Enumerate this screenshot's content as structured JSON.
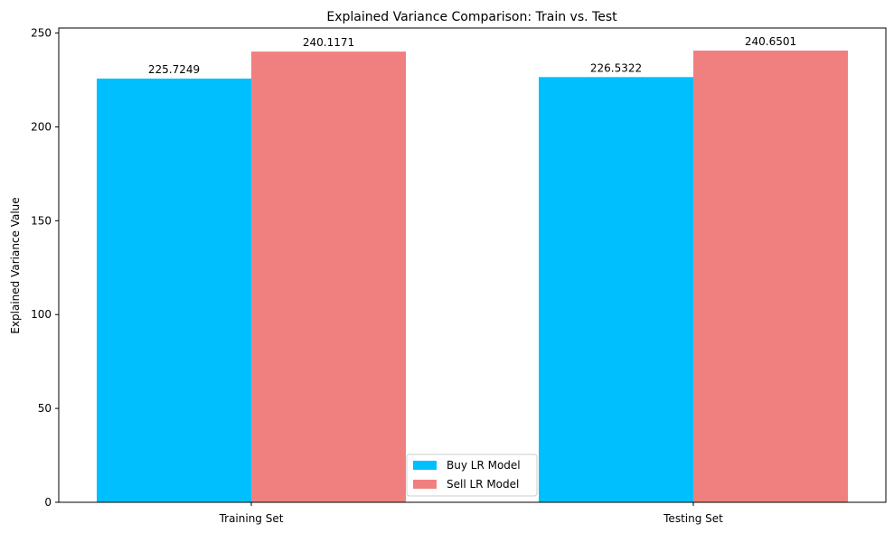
{
  "chart_data": {
    "type": "bar",
    "title": "Explained Variance Comparison: Train vs. Test",
    "xlabel": "",
    "ylabel": "Explained Variance Value",
    "categories": [
      "Training Set",
      "Testing Set"
    ],
    "series": [
      {
        "name": "Buy LR Model",
        "color": "#00bfff",
        "values": [
          225.7249,
          226.5322
        ],
        "labels": [
          "225.7249",
          "226.5322"
        ]
      },
      {
        "name": "Sell LR Model",
        "color": "#f08080",
        "values": [
          240.1171,
          240.6501
        ],
        "labels": [
          "240.1171",
          "240.6501"
        ]
      }
    ],
    "yticks": [
      0,
      50,
      100,
      150,
      200,
      250
    ],
    "ytick_labels": [
      "0",
      "50",
      "100",
      "150",
      "200",
      "250"
    ],
    "ylim": [
      0,
      252.68
    ],
    "grid": false,
    "legend": "bottom-center"
  }
}
